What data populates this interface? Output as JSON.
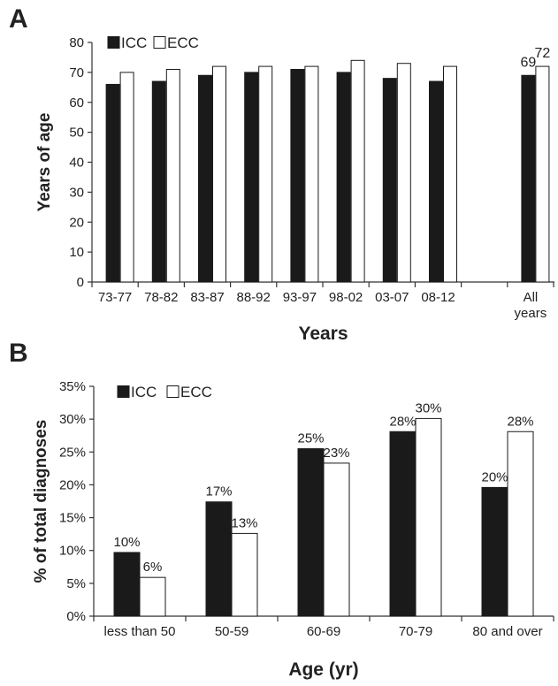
{
  "panels": [
    {
      "panel_label": "A",
      "chart_data": {
        "type": "bar",
        "categories": [
          "73-77",
          "78-82",
          "83-87",
          "88-92",
          "93-97",
          "98-02",
          "03-07",
          "08-12",
          "",
          "All\nyears"
        ],
        "series": [
          {
            "name": "ICC",
            "values": [
              66,
              67,
              69,
              70,
              71,
              70,
              68,
              67,
              null,
              69
            ],
            "color": "#1a1a1a"
          },
          {
            "name": "ECC",
            "values": [
              70,
              71,
              72,
              72,
              72,
              74,
              73,
              72,
              null,
              72
            ],
            "color": "#ffffff"
          }
        ],
        "data_labels": {
          "9": [
            "69",
            "72"
          ]
        },
        "xlabel": "Years",
        "ylabel": "Years of age",
        "ylim": [
          0,
          80
        ],
        "yticks": [
          0,
          10,
          20,
          30,
          40,
          50,
          60,
          70,
          80
        ],
        "ytick_labels": [
          "0",
          "10",
          "20",
          "30",
          "40",
          "50",
          "60",
          "70",
          "80"
        ],
        "legend": "top-left",
        "grid": false
      }
    },
    {
      "panel_label": "B",
      "chart_data": {
        "type": "bar",
        "categories": [
          "less than 50",
          "50-59",
          "60-69",
          "70-79",
          "80 and over"
        ],
        "series": [
          {
            "name": "ICC",
            "values": [
              9.7,
              17.4,
              25.5,
              28.1,
              19.6
            ],
            "color": "#1a1a1a"
          },
          {
            "name": "ECC",
            "values": [
              5.9,
              12.6,
              23.3,
              30.1,
              28.1
            ],
            "color": "#ffffff"
          }
        ],
        "data_labels": [
          [
            "10%",
            "6%"
          ],
          [
            "17%",
            "13%"
          ],
          [
            "25%",
            "23%"
          ],
          [
            "28%",
            "30%"
          ],
          [
            "20%",
            "28%"
          ]
        ],
        "xlabel": "Age (yr)",
        "ylabel": "% of total diagnoses",
        "ylim": [
          0,
          35
        ],
        "yticks": [
          0,
          5,
          10,
          15,
          20,
          25,
          30,
          35
        ],
        "ytick_labels": [
          "0%",
          "5%",
          "10%",
          "15%",
          "20%",
          "25%",
          "30%",
          "35%"
        ],
        "legend": "top-left",
        "grid": false
      }
    }
  ]
}
